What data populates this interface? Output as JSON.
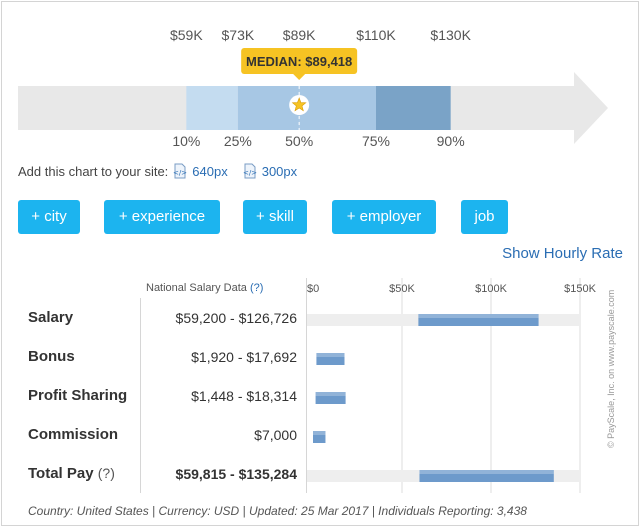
{
  "chart_data": [
    {
      "type": "range-band",
      "axis_range": [
        20000,
        170000
      ],
      "percentiles": [
        {
          "label": "10%",
          "value": 59200,
          "value_label": "$59K",
          "color": "#c4dcf0"
        },
        {
          "label": "25%",
          "value": 73000,
          "value_label": "$73K",
          "color": "#a7c7e4"
        },
        {
          "label": "50%",
          "value": 89418,
          "value_label": "$89K",
          "color": "#a7c7e4"
        },
        {
          "label": "75%",
          "value": 110000,
          "value_label": "$110K",
          "color": "#7aa3c7"
        },
        {
          "label": "90%",
          "value": 130000,
          "value_label": "$130K",
          "color": "#7aa3c7"
        }
      ],
      "median_callout": "MEDIAN: $89,418",
      "median_value": 89418
    },
    {
      "type": "bar",
      "orientation": "horizontal",
      "xlim": [
        0,
        150000
      ],
      "ticks": [
        {
          "value": 0,
          "label": "$0"
        },
        {
          "value": 50000,
          "label": "$50K"
        },
        {
          "value": 100000,
          "label": "$100K"
        },
        {
          "value": 150000,
          "label": "$150K"
        }
      ],
      "rows": [
        {
          "label": "Salary",
          "range_text": "$59,200 - $126,726",
          "low": 59200,
          "high": 126726,
          "track": true
        },
        {
          "label": "Bonus",
          "range_text": "$1,920 - $17,692",
          "low": 1920,
          "high": 17692,
          "track": false
        },
        {
          "label": "Profit Sharing",
          "range_text": "$1,448 - $18,314",
          "low": 1448,
          "high": 18314,
          "track": false
        },
        {
          "label": "Commission",
          "range_text": "$7,000",
          "low": 0,
          "high": 7000,
          "track": false
        },
        {
          "label": "Total Pay",
          "label_suffix": "(?)",
          "range_text": "$59,815 - $135,284",
          "low": 59815,
          "high": 135284,
          "track": true,
          "bold": true
        }
      ]
    }
  ],
  "embed": {
    "prompt": "Add this chart to your site:",
    "links": [
      "640px",
      "300px"
    ]
  },
  "buttons": [
    "+ city",
    "+ experience",
    "+ skill",
    "+ employer",
    "job"
  ],
  "hourly_link": "Show Hourly Rate",
  "table_header": {
    "text": "National Salary Data",
    "help": "(?)"
  },
  "footer": "Country: United States  |  Currency: USD  |  Updated: 25 Mar 2017  |  Individuals Reporting: 3,438",
  "credit": "© PayScale, Inc. on www.payscale.com",
  "colors": {
    "accent": "#1cb4ef",
    "link": "#2a6db3",
    "median_badge": "#f6c323",
    "bar": "#6d9acb",
    "track": "#eeeeee"
  }
}
